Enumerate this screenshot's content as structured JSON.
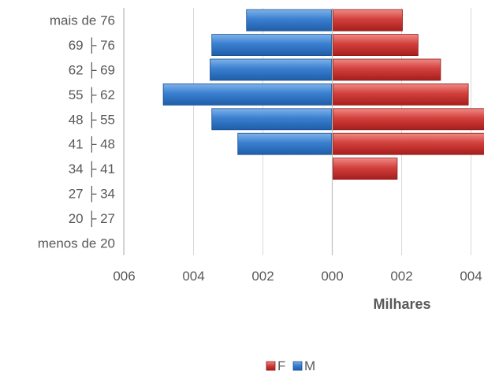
{
  "chart_data": {
    "type": "bar",
    "orientation": "horizontal",
    "subtype": "population-pyramid",
    "categories": [
      "mais de 76",
      "69 ├ 76",
      "62 ├ 69",
      "55 ├ 62",
      "48 ├ 55",
      "41 ├ 48",
      "34 ├ 41",
      "27 ├ 34",
      "20 ├ 27",
      "menos de 20"
    ],
    "series": [
      {
        "name": "F",
        "color": "#c0392b",
        "side": "right",
        "values": [
          2.0,
          2.45,
          3.1,
          3.9,
          4.6,
          4.6,
          1.85,
          0,
          0,
          0
        ]
      },
      {
        "name": "M",
        "color": "#2e75b6",
        "side": "left",
        "values": [
          2.45,
          3.45,
          3.5,
          4.85,
          3.45,
          2.7,
          0,
          0,
          0,
          0
        ]
      }
    ],
    "x_ticks": [
      "006",
      "004",
      "002",
      "000",
      "002",
      "004"
    ],
    "xlabel": "Milhares",
    "xlim": [
      -6,
      6
    ],
    "grid": true,
    "legend": "bottom"
  }
}
